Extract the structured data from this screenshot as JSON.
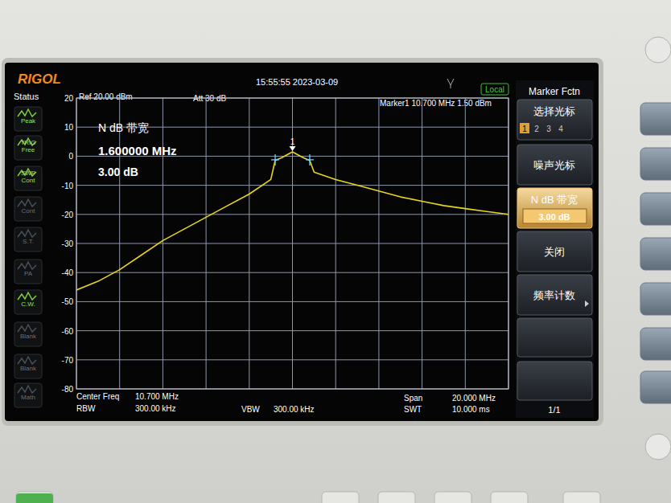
{
  "chart_data": {
    "type": "line",
    "x": [
      0.7,
      1.7,
      2.7,
      3.7,
      4.7,
      5.7,
      6.7,
      7.7,
      8.7,
      9.7,
      9.9,
      10.2,
      10.7,
      11.2,
      11.5,
      11.7,
      12.7,
      13.7,
      14.7,
      15.7,
      16.7,
      17.7,
      18.7,
      19.7,
      20.7
    ],
    "values": [
      -46,
      -43,
      -39,
      -34,
      -29,
      -25,
      -21,
      -17,
      -13,
      -8,
      -1.5,
      -0.5,
      1.5,
      -0.5,
      -1.5,
      -5.5,
      -8,
      -10,
      -12,
      -14,
      -15.5,
      -17,
      -18,
      -19,
      -20
    ],
    "color": "#e8d61c",
    "xlim": [
      0.7,
      20.7
    ],
    "ylim": [
      -80,
      20
    ],
    "xticks": [
      0.7,
      2.7,
      4.7,
      6.7,
      8.7,
      10.7,
      12.7,
      14.7,
      16.7,
      18.7,
      20.7
    ],
    "yticks": [
      -80,
      -70,
      -60,
      -50,
      -40,
      -30,
      -20,
      -10,
      0,
      10,
      20
    ],
    "grid": true,
    "tick_labels": "y",
    "peak_marker": {
      "label": "1",
      "x": 10.7,
      "value": 1.5
    },
    "bandwidth_edges": [
      9.9,
      11.5
    ]
  },
  "screen": {
    "brand": "RIGOL",
    "ref_level": "Ref 20.00 dBm",
    "attenuation": "Att  30 dB",
    "timestamp": "15:55:55 2023-03-09",
    "remote_state": "Local",
    "marker_readout": "Marker1  10.700 MHz   1.50 dBm",
    "status_title": "Status",
    "status": [
      [
        "Peak"
      ],
      [
        "TRIG",
        "Free"
      ],
      [
        "SWP",
        "Cont"
      ],
      [
        "Cont"
      ],
      [
        "S.T."
      ],
      [
        "PA"
      ],
      [
        "C.W."
      ],
      [
        "Blank"
      ],
      [
        "Blank"
      ],
      [
        "Math"
      ]
    ],
    "measurement": {
      "title": "N dB 带宽",
      "bandwidth": "1.600000 MHz",
      "n_db": "3.00 dB"
    },
    "footer": {
      "center_label": "Center Freq",
      "center_value": "10.700 MHz",
      "rbw_label": "RBW",
      "rbw_value": "300.00 kHz",
      "vbw_label": "VBW",
      "vbw_value": "300.00 kHz",
      "span_label": "Span",
      "span_value": "20.000 MHz",
      "swt_label": "SWT",
      "swt_value": "10.000 ms"
    },
    "menu": {
      "title": "Marker Fctn",
      "select_label": "选择光标",
      "select_items": [
        "1",
        "2",
        "3",
        "4"
      ],
      "items": [
        {
          "label": "噪声光标"
        },
        {
          "label": "N dB 带宽",
          "value": "3.00 dB"
        },
        {
          "label": "关闭"
        },
        {
          "label": "频率计数"
        }
      ],
      "page": "1/1"
    }
  }
}
